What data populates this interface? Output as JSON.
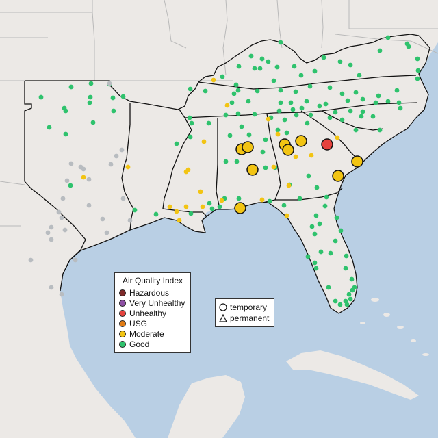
{
  "colors": {
    "water": "#b9cfe4",
    "land": "#ece9e6",
    "hazardous": "#7e2a2a",
    "very_unhealthy": "#8d4fa3",
    "unhealthy": "#e5433e",
    "usg": "#e07b14",
    "moderate": "#f2c413",
    "good": "#2fc26d",
    "no_data": "#b8bcc0"
  },
  "legend": {
    "title": "Air Quality Index",
    "items": [
      {
        "label": "Hazardous",
        "color": "#7e2a2a"
      },
      {
        "label": "Very Unhealthy",
        "color": "#8d4fa3"
      },
      {
        "label": "Unhealthy",
        "color": "#e5433e"
      },
      {
        "label": "USG",
        "color": "#e07b14"
      },
      {
        "label": "Moderate",
        "color": "#f2c413"
      },
      {
        "label": "Good",
        "color": "#2fc26d"
      }
    ]
  },
  "shape_legend": {
    "temporary": "temporary",
    "permanent": "permanent"
  }
}
